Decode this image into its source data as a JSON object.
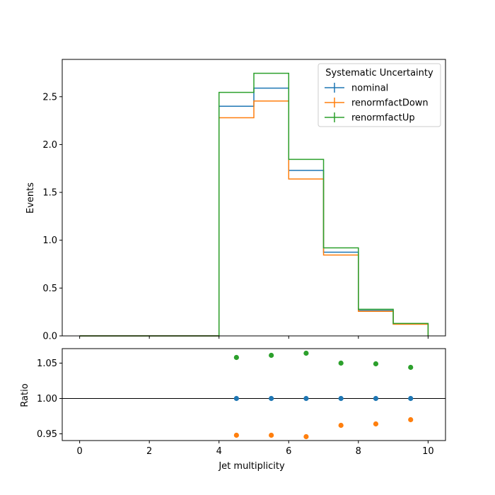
{
  "chart_data": [
    {
      "type": "step",
      "xlabel": "",
      "ylabel": "Events",
      "xlim": [
        -0.5,
        10.5
      ],
      "ylim": [
        0,
        2.89
      ],
      "bin_edges": [
        0,
        1,
        2,
        3,
        4,
        5,
        6,
        7,
        8,
        9,
        10
      ],
      "xticks": [
        0,
        2,
        4,
        6,
        8,
        10
      ],
      "yticks": [
        "0.0",
        "0.5",
        "1.0",
        "1.5",
        "2.0",
        "2.5"
      ],
      "legend": {
        "title": "Systematic Uncertainty",
        "position": "top-right"
      },
      "series": [
        {
          "name": "nominal",
          "color": "#1f77b4",
          "values": [
            0,
            0,
            0,
            0,
            2.4,
            2.59,
            1.73,
            0.875,
            0.265,
            0.126
          ]
        },
        {
          "name": "renormfactDown",
          "color": "#ff7f0e",
          "values": [
            0,
            0,
            0,
            0,
            2.28,
            2.455,
            1.64,
            0.845,
            0.257,
            0.122
          ]
        },
        {
          "name": "renormfactUp",
          "color": "#2ca02c",
          "values": [
            0,
            0,
            0,
            0,
            2.545,
            2.745,
            1.845,
            0.92,
            0.278,
            0.13
          ]
        }
      ]
    },
    {
      "type": "scatter",
      "xlabel": "Jet multiplicity",
      "ylabel": "Ratio",
      "xlim": [
        -0.5,
        10.5
      ],
      "ylim": [
        0.9405,
        1.0705
      ],
      "xticks": [
        0,
        2,
        4,
        6,
        8,
        10
      ],
      "yticks": [
        "0.95",
        "1.00",
        "1.05"
      ],
      "reference_line": 1.0,
      "x": [
        4.5,
        5.5,
        6.5,
        7.5,
        8.5,
        9.5
      ],
      "series": [
        {
          "name": "nominal",
          "color": "#1f77b4",
          "values": [
            1.0,
            1.0,
            1.0,
            1.0,
            1.0,
            1.0
          ]
        },
        {
          "name": "renormfactDown",
          "color": "#ff7f0e",
          "values": [
            0.948,
            0.948,
            0.946,
            0.962,
            0.964,
            0.97
          ]
        },
        {
          "name": "renormfactUp",
          "color": "#2ca02c",
          "values": [
            1.058,
            1.061,
            1.064,
            1.05,
            1.049,
            1.044
          ]
        }
      ]
    }
  ]
}
